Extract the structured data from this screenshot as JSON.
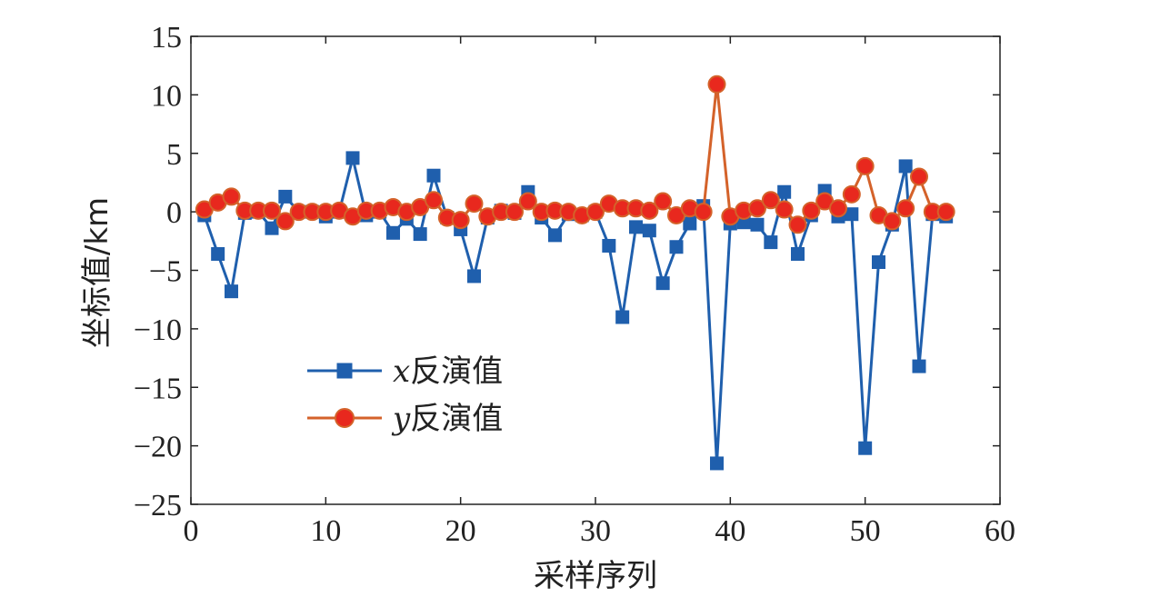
{
  "chart_data": {
    "type": "line",
    "xlabel": "采样序列",
    "ylabel": "坐标值/km",
    "xlim": [
      0,
      60
    ],
    "ylim": [
      -25,
      15
    ],
    "xticks": [
      0,
      10,
      20,
      30,
      40,
      50,
      60
    ],
    "yticks": [
      15,
      10,
      5,
      0,
      -5,
      -10,
      -15,
      -20,
      -25
    ],
    "grid": false,
    "legend_position": "lower-left",
    "x": [
      1,
      2,
      3,
      4,
      5,
      6,
      7,
      8,
      9,
      10,
      11,
      12,
      13,
      14,
      15,
      16,
      17,
      18,
      19,
      20,
      21,
      22,
      23,
      24,
      25,
      26,
      27,
      28,
      29,
      30,
      31,
      32,
      33,
      34,
      35,
      36,
      37,
      38,
      39,
      40,
      41,
      42,
      43,
      44,
      45,
      46,
      47,
      48,
      49,
      50,
      51,
      52,
      53,
      54,
      55,
      56
    ],
    "series": [
      {
        "name_var": "x",
        "name_text": "反演值",
        "color": "#1f5fad",
        "marker": "square",
        "values": [
          -0.3,
          -3.6,
          -6.8,
          -0.1,
          0,
          -1.4,
          1.3,
          0,
          0,
          -0.4,
          0,
          4.6,
          -0.3,
          0,
          -1.8,
          -0.6,
          -1.9,
          3.1,
          -0.5,
          -1.5,
          -5.5,
          -0.5,
          0.1,
          -0.1,
          1.7,
          -0.5,
          -2.0,
          -0.2,
          -0.3,
          0,
          -2.9,
          -9.0,
          -1.3,
          -1.6,
          -6.1,
          -3.0,
          -1.0,
          0.5,
          -21.5,
          -1.0,
          -0.9,
          -1.1,
          -2.6,
          1.7,
          -3.6,
          -0.3,
          1.8,
          -0.4,
          -0.2,
          -20.2,
          -4.3,
          -1.1,
          3.9,
          -13.2,
          -0.2,
          -0.4
        ]
      },
      {
        "name_var": "y",
        "name_text": "反演值",
        "color": "#d4622a",
        "marker_fill": "#e8281e",
        "marker": "circle",
        "values": [
          0.2,
          0.8,
          1.3,
          0.1,
          0.1,
          0.1,
          -0.8,
          0,
          0,
          0,
          0.1,
          -0.4,
          0.1,
          0.1,
          0.4,
          0,
          0.4,
          1.0,
          -0.5,
          -0.7,
          0.7,
          -0.4,
          0,
          0,
          0.9,
          0,
          0.1,
          0,
          -0.3,
          0,
          0.7,
          0.3,
          0.3,
          0.1,
          0.9,
          -0.3,
          0.3,
          0,
          10.9,
          -0.4,
          0.1,
          0.3,
          1.0,
          0.2,
          -1.1,
          0.1,
          0.9,
          0.3,
          1.5,
          3.9,
          -0.3,
          -0.8,
          0.3,
          3.0,
          0,
          0
        ]
      }
    ]
  }
}
